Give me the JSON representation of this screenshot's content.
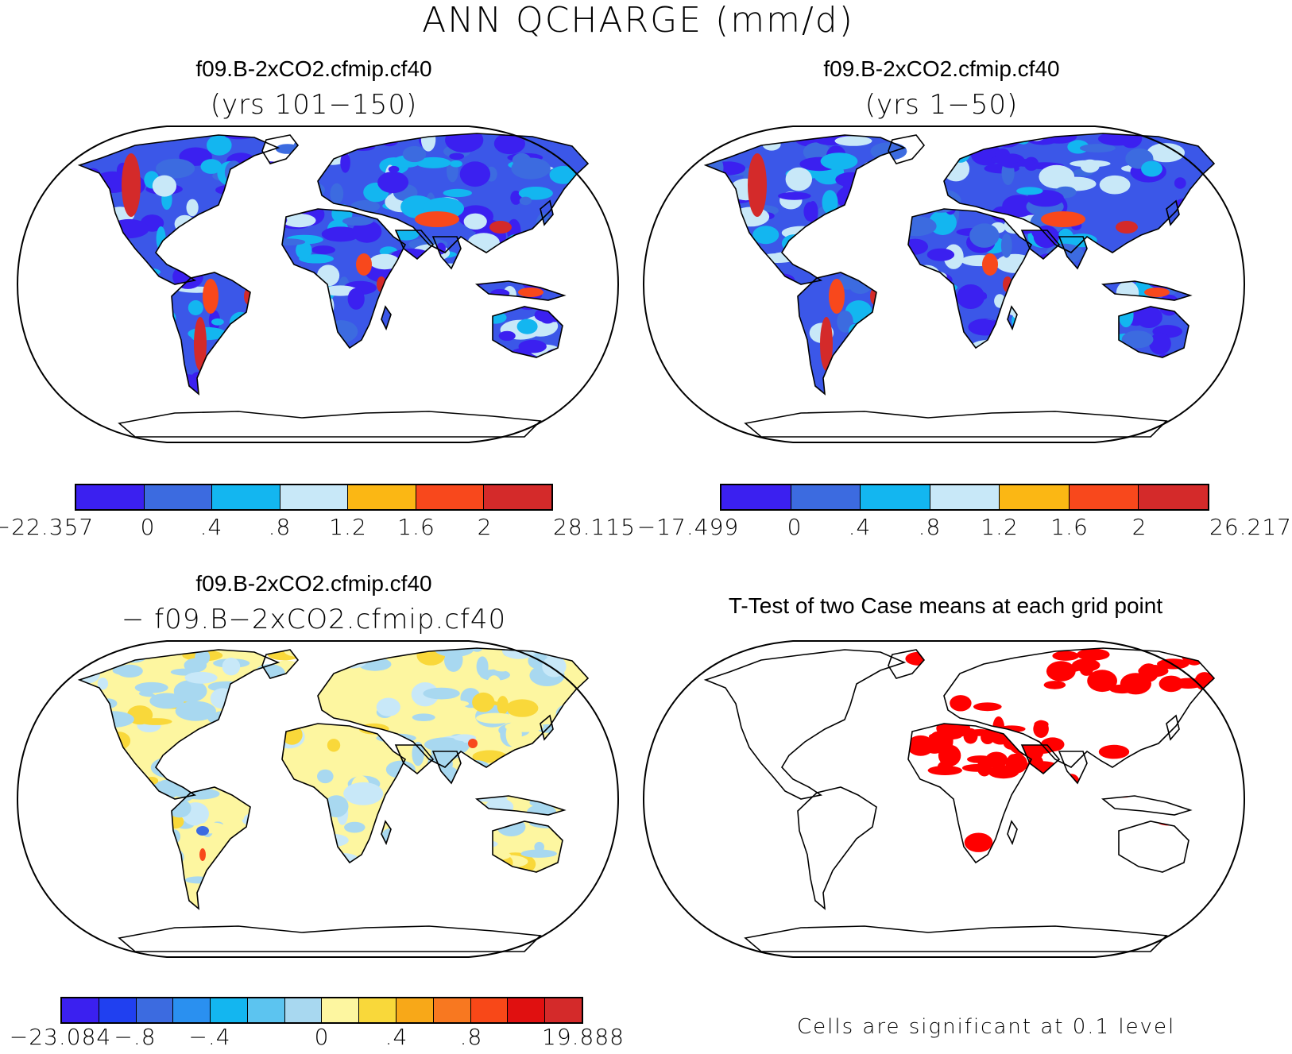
{
  "title": "ANN QCHARGE (mm/d)",
  "panels": [
    {
      "title": "f09.B-2xCO2.cfmip.cf40",
      "subtitle": "(yrs 101−150)",
      "colorbar": {
        "colors": [
          "#3b20f0",
          "#3c6be0",
          "#13b6f0",
          "#c8e8f8",
          "#fbb714",
          "#f8481c",
          "#d42a2a"
        ],
        "ticks": [
          "−22.357",
          "0",
          ".4",
          ".8",
          "1.2",
          "1.6",
          "2",
          "28.115"
        ]
      },
      "map_style": "case"
    },
    {
      "title": "f09.B-2xCO2.cfmip.cf40",
      "subtitle": "(yrs 1−50)",
      "colorbar": {
        "colors": [
          "#3b20f0",
          "#3c6be0",
          "#13b6f0",
          "#c8e8f8",
          "#fbb714",
          "#f8481c",
          "#d42a2a"
        ],
        "ticks": [
          "−17.499",
          "0",
          ".4",
          ".8",
          "1.2",
          "1.6",
          "2",
          "26.217"
        ]
      },
      "map_style": "case"
    },
    {
      "title": "f09.B-2xCO2.cfmip.cf40",
      "subtitle": "− f09.B−2xCO2.cfmip.cf40",
      "colorbar": {
        "colors": [
          "#3b20f0",
          "#2040f0",
          "#3c6be0",
          "#2a90f0",
          "#13b6f0",
          "#5cc4f0",
          "#a8d8f0",
          "#fdf6a0",
          "#f9d83a",
          "#f8a818",
          "#f87820",
          "#f84818",
          "#e01010",
          "#d42a2a"
        ],
        "ticks": [
          "−23.084",
          "−.8",
          "−.4",
          "0",
          ".4",
          ".8",
          "19.888"
        ]
      },
      "map_style": "diff"
    },
    {
      "title": "T-Test of two Case means at each grid point",
      "note": "Cells are significant at 0.1 level",
      "map_style": "ttest",
      "significant_color": "#ff0000"
    }
  ]
}
